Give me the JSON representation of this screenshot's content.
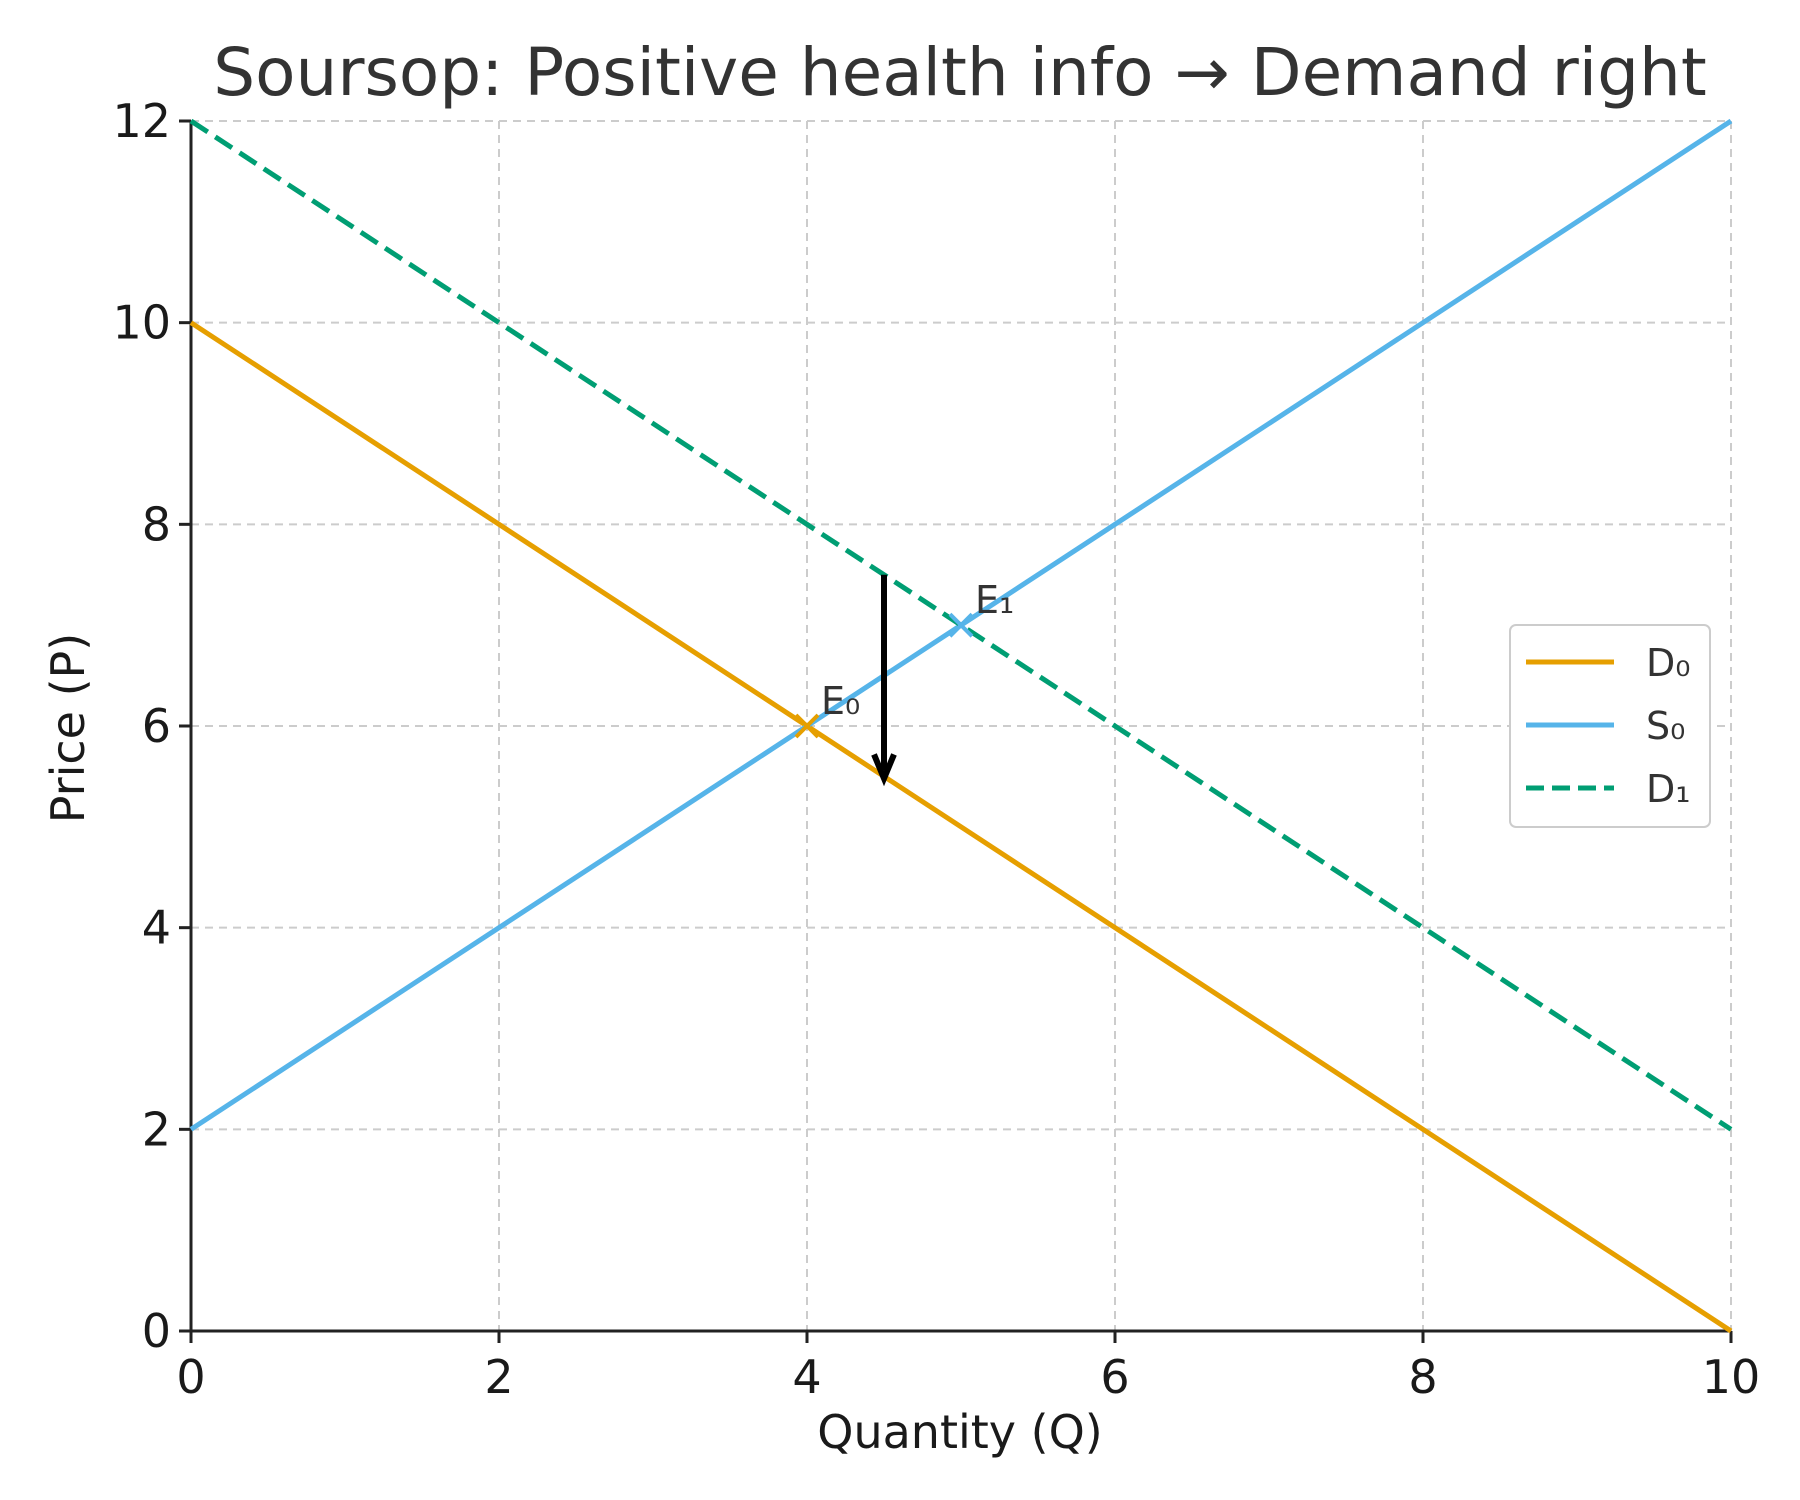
{
  "chart_data": {
    "type": "line",
    "title": "Soursop: Positive health info → Demand right",
    "xlabel": "Quantity (Q)",
    "ylabel": "Price (P)",
    "xlim": [
      0,
      10
    ],
    "ylim": [
      0,
      12
    ],
    "xticks": [
      0,
      2,
      4,
      6,
      8,
      10
    ],
    "yticks": [
      0,
      2,
      4,
      6,
      8,
      10,
      12
    ],
    "grid": true,
    "legend_position": "center-right",
    "series": [
      {
        "name": "D₀",
        "color": "#E69F00",
        "dash": "solid",
        "x": [
          0,
          10
        ],
        "y": [
          10,
          0
        ]
      },
      {
        "name": "S₀",
        "color": "#56B4E9",
        "dash": "solid",
        "x": [
          0,
          10
        ],
        "y": [
          2,
          12
        ]
      },
      {
        "name": "D₁",
        "color": "#009E73",
        "dash": "dashed",
        "x": [
          0,
          10
        ],
        "y": [
          12,
          2
        ]
      }
    ],
    "points": [
      {
        "label": "E₀",
        "x": 4,
        "y": 6,
        "color": "#E69F00",
        "marker": "x"
      },
      {
        "label": "E₁",
        "x": 5,
        "y": 7,
        "color": "#56B4E9",
        "marker": "x"
      }
    ],
    "annotations": [
      {
        "type": "arrow",
        "x_from": 4.5,
        "y_from": 7.5,
        "x_to": 4.5,
        "y_to": 5.5,
        "color": "#000000"
      }
    ]
  }
}
